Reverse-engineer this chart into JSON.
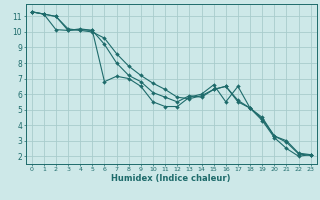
{
  "xlabel": "Humidex (Indice chaleur)",
  "bg_color": "#cde8e8",
  "grid_color": "#a8cccc",
  "line_color": "#1e6b6b",
  "xlim": [
    -0.5,
    23.5
  ],
  "ylim": [
    1.5,
    11.8
  ],
  "xticks": [
    0,
    1,
    2,
    3,
    4,
    5,
    6,
    7,
    8,
    9,
    10,
    11,
    12,
    13,
    14,
    15,
    16,
    17,
    18,
    19,
    20,
    21,
    22,
    23
  ],
  "yticks": [
    2,
    3,
    4,
    5,
    6,
    7,
    8,
    9,
    10,
    11
  ],
  "line1_x": [
    0,
    1,
    2,
    3,
    4,
    5,
    6,
    7,
    8,
    9,
    10,
    11,
    12,
    13,
    14,
    15,
    16,
    17,
    18,
    19,
    20,
    21,
    22,
    23
  ],
  "line1_y": [
    11.3,
    11.15,
    11.0,
    10.1,
    10.15,
    10.1,
    6.8,
    7.15,
    7.0,
    6.5,
    5.5,
    5.2,
    5.2,
    5.8,
    6.0,
    6.6,
    5.5,
    6.5,
    5.1,
    4.3,
    3.2,
    2.5,
    2.0,
    2.1
  ],
  "line2_x": [
    0,
    1,
    2,
    3,
    4,
    5,
    6,
    7,
    8,
    9,
    10,
    11,
    12,
    13,
    14,
    15,
    16,
    17,
    18,
    19,
    20,
    21,
    22,
    23
  ],
  "line2_y": [
    11.3,
    11.15,
    10.15,
    10.1,
    10.2,
    10.1,
    9.2,
    8.0,
    7.2,
    6.8,
    6.1,
    5.8,
    5.5,
    5.9,
    5.8,
    6.3,
    6.5,
    5.5,
    5.1,
    4.5,
    3.3,
    3.0,
    2.2,
    2.1
  ],
  "line3_x": [
    0,
    1,
    2,
    3,
    4,
    5,
    6,
    7,
    8,
    9,
    10,
    11,
    12,
    13,
    14,
    15,
    16,
    17,
    18,
    19,
    20,
    21,
    22,
    23
  ],
  "line3_y": [
    11.3,
    11.15,
    11.0,
    10.2,
    10.1,
    10.0,
    9.6,
    8.6,
    7.8,
    7.2,
    6.7,
    6.3,
    5.8,
    5.7,
    5.9,
    6.3,
    6.5,
    5.6,
    5.1,
    4.4,
    3.3,
    2.9,
    2.15,
    2.05
  ]
}
